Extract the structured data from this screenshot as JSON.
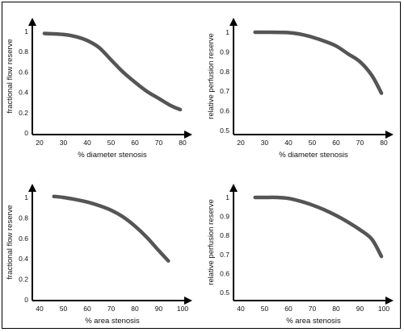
{
  "chart_data": [
    {
      "type": "line",
      "xlabel": "% diameter stenosis",
      "ylabel": "fractional flow reserve",
      "xlim": [
        20,
        80
      ],
      "ylim": [
        0,
        1
      ],
      "x_ticks": [
        "20",
        "30",
        "40",
        "50",
        "60",
        "70",
        "80"
      ],
      "y_ticks": [
        "0",
        "0.2",
        "0.4",
        "0.6",
        "0.8",
        "1"
      ],
      "grid": false,
      "line_color": "#555555",
      "series": [
        {
          "x": [
            22,
            30,
            35,
            40,
            45,
            50,
            55,
            60,
            65,
            70,
            75,
            79
          ],
          "y": [
            0.98,
            0.97,
            0.95,
            0.91,
            0.84,
            0.72,
            0.6,
            0.5,
            0.41,
            0.34,
            0.27,
            0.23
          ]
        }
      ]
    },
    {
      "type": "line",
      "xlabel": "% diameter stenosis",
      "ylabel": "relative perfusion reserve",
      "xlim": [
        20,
        80
      ],
      "ylim": [
        0.5,
        1
      ],
      "x_ticks": [
        "20",
        "30",
        "40",
        "50",
        "60",
        "70",
        "80"
      ],
      "y_ticks": [
        "0.5",
        "0.6",
        "0.7",
        "0.8",
        "0.9",
        "1"
      ],
      "grid": false,
      "line_color": "#555555",
      "series": [
        {
          "x": [
            26,
            30,
            40,
            45,
            50,
            55,
            60,
            65,
            70,
            75,
            79
          ],
          "y": [
            1.0,
            1.0,
            0.998,
            0.99,
            0.975,
            0.955,
            0.93,
            0.89,
            0.85,
            0.78,
            0.69
          ]
        }
      ]
    },
    {
      "type": "line",
      "xlabel": "% area stenosis",
      "ylabel": "fractional flow reserve",
      "xlim": [
        40,
        100
      ],
      "ylim": [
        0,
        1
      ],
      "x_ticks": [
        "40",
        "50",
        "60",
        "70",
        "80",
        "90",
        "100"
      ],
      "y_ticks": [
        "0",
        "0.2",
        "0.4",
        "0.6",
        "0.8",
        "1"
      ],
      "grid": false,
      "line_color": "#555555",
      "series": [
        {
          "x": [
            46,
            50,
            55,
            60,
            65,
            70,
            75,
            80,
            85,
            90,
            94
          ],
          "y": [
            1.01,
            1.0,
            0.98,
            0.955,
            0.92,
            0.875,
            0.81,
            0.72,
            0.61,
            0.48,
            0.38
          ]
        }
      ]
    },
    {
      "type": "line",
      "xlabel": "% area stenosis",
      "ylabel": "relative perfusion reserve",
      "xlim": [
        40,
        100
      ],
      "ylim": [
        0.5,
        1
      ],
      "x_ticks": [
        "40",
        "50",
        "60",
        "70",
        "80",
        "90",
        "100"
      ],
      "y_ticks": [
        "0.5",
        "0.6",
        "0.7",
        "0.8",
        "0.9",
        "1"
      ],
      "grid": false,
      "line_color": "#555555",
      "series": [
        {
          "x": [
            46,
            50,
            55,
            60,
            65,
            70,
            75,
            80,
            85,
            90,
            95,
            99
          ],
          "y": [
            1.0,
            1.0,
            1.0,
            0.995,
            0.98,
            0.96,
            0.935,
            0.905,
            0.87,
            0.83,
            0.78,
            0.69
          ]
        }
      ]
    }
  ]
}
